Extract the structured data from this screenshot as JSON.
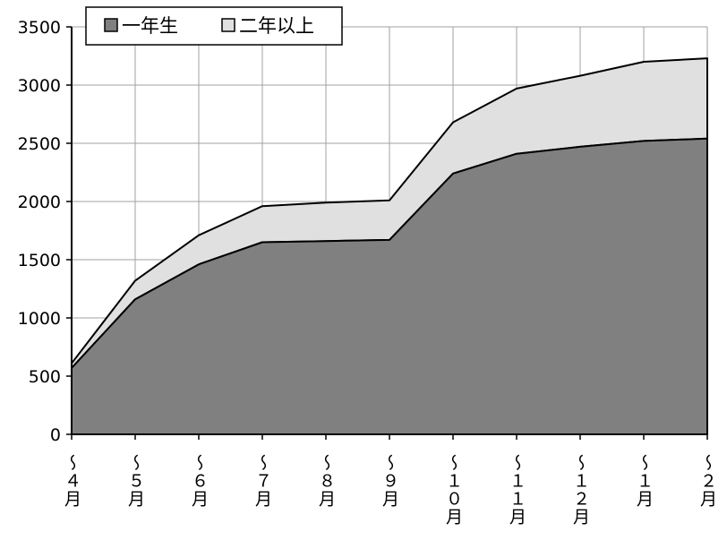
{
  "chart_data": {
    "type": "area",
    "stacked": true,
    "categories": [
      "〜４月",
      "〜５月",
      "〜６月",
      "〜７月",
      "〜８月",
      "〜９月",
      "〜１０月",
      "〜１１月",
      "〜１２月",
      "〜１月",
      "〜２月"
    ],
    "series": [
      {
        "name": "一年生",
        "values": [
          570,
          1160,
          1460,
          1650,
          1660,
          1670,
          2240,
          2410,
          2470,
          2520,
          2540
        ],
        "color": "#808080"
      },
      {
        "name": "二年以上",
        "values": [
          40,
          160,
          250,
          310,
          330,
          340,
          440,
          560,
          610,
          680,
          690
        ],
        "color": "#e0e0e0"
      }
    ],
    "ylim": [
      0,
      3500
    ],
    "yticks": [
      0,
      500,
      1000,
      1500,
      2000,
      2500,
      3000,
      3500
    ],
    "grid": true,
    "legend_position": "top-left",
    "title": "",
    "xlabel": "",
    "ylabel": ""
  }
}
